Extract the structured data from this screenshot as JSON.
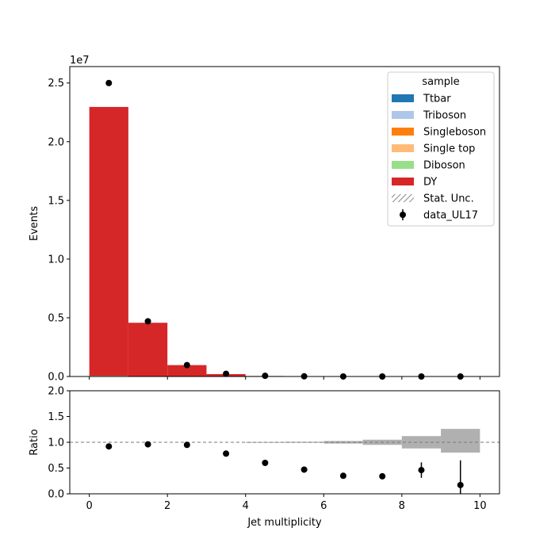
{
  "chart_data": [
    {
      "type": "bar",
      "stacked": true,
      "x_bin_edges": [
        0,
        1,
        2,
        3,
        4,
        5,
        6,
        7,
        8,
        9,
        10
      ],
      "ylabel": "Events",
      "y_offset_label": "1e7",
      "ylim": [
        0,
        26400000
      ],
      "yticks": [
        0.0,
        0.5,
        1.0,
        1.5,
        2.0,
        2.5
      ],
      "ytick_scale": 10000000,
      "xlim": [
        -0.5,
        10.5
      ],
      "xticks": [
        0,
        2,
        4,
        6,
        8,
        10
      ],
      "series": [
        {
          "name": "Ttbar",
          "color": "#1f77b4",
          "values": [
            1000,
            2000,
            2000,
            1000,
            500,
            200,
            100,
            50,
            20,
            10
          ]
        },
        {
          "name": "Triboson",
          "color": "#aec7e8",
          "values": [
            50,
            50,
            30,
            20,
            10,
            5,
            2,
            1,
            0,
            0
          ]
        },
        {
          "name": "Singleboson",
          "color": "#ff7f0e",
          "values": [
            20000,
            4000,
            800,
            150,
            30,
            6,
            1,
            0,
            0,
            0
          ]
        },
        {
          "name": "Single top",
          "color": "#ffbb78",
          "values": [
            500,
            800,
            500,
            200,
            60,
            15,
            3,
            1,
            0,
            0
          ]
        },
        {
          "name": "Diboson",
          "color": "#98df8a",
          "values": [
            40000,
            20000,
            6000,
            1500,
            300,
            60,
            10,
            2,
            0,
            0
          ]
        },
        {
          "name": "DY",
          "color": "#d62728",
          "values": [
            22900000,
            4550000,
            960000,
            200000,
            40000,
            7500,
            1300,
            200,
            40,
            8
          ]
        }
      ],
      "data_points": {
        "name": "data_UL17",
        "x": [
          0.5,
          1.5,
          2.5,
          3.5,
          4.5,
          5.5,
          6.5,
          7.5,
          8.5,
          9.5
        ],
        "y": [
          25000000,
          4700000,
          970000,
          230000,
          60000,
          14000,
          3000,
          600,
          120,
          20
        ]
      },
      "legend": {
        "title": "sample",
        "placement": "top-right",
        "entries": [
          "Ttbar",
          "Triboson",
          "Singleboson",
          "Single top",
          "Diboson",
          "DY",
          "Stat. Unc.",
          "data_UL17"
        ]
      }
    },
    {
      "type": "scatter",
      "xlabel": "Jet multiplicity",
      "ylabel": "Ratio",
      "ylim": [
        0.0,
        2.0
      ],
      "yticks": [
        "0.0",
        "0.5",
        "1.0",
        "1.5",
        "2.0"
      ],
      "xlim": [
        -0.5,
        10.5
      ],
      "xticks": [
        "0",
        "2",
        "4",
        "6",
        "8",
        "10"
      ],
      "reference_line": 1.0,
      "points": {
        "x": [
          0.5,
          1.5,
          2.5,
          3.5,
          4.5,
          5.5,
          6.5,
          7.5,
          8.5,
          9.5
        ],
        "y": [
          0.92,
          0.96,
          0.95,
          0.78,
          0.6,
          0.47,
          0.35,
          0.34,
          0.46,
          0.17
        ],
        "err": [
          0.003,
          0.005,
          0.01,
          0.02,
          0.03,
          0.03,
          0.03,
          0.05,
          0.15,
          0.48
        ]
      },
      "stat_unc_band": {
        "x_bin_edges": [
          4,
          5,
          6,
          7,
          8,
          9,
          10
        ],
        "lower": [
          0.995,
          0.99,
          0.975,
          0.95,
          0.88,
          0.8
        ],
        "upper": [
          1.005,
          1.01,
          1.025,
          1.05,
          1.12,
          1.26
        ],
        "color": "#b0b0b0"
      }
    }
  ]
}
